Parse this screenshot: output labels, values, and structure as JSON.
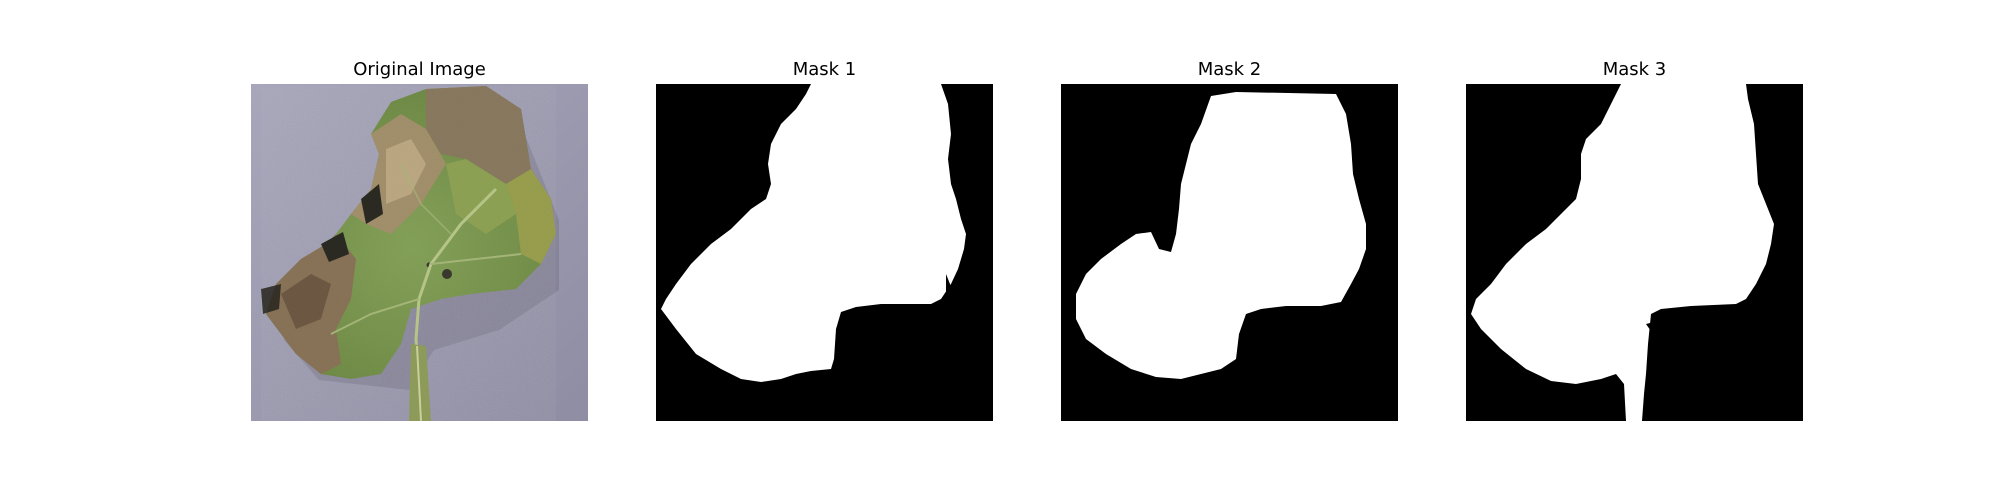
{
  "figure": {
    "panels": [
      {
        "title": "Original Image",
        "kind": "photo",
        "subject": "leaf"
      },
      {
        "title": "Mask 1",
        "kind": "mask"
      },
      {
        "title": "Mask 2",
        "kind": "mask"
      },
      {
        "title": "Mask 3",
        "kind": "mask"
      }
    ]
  },
  "colors": {
    "background": "#ffffff",
    "mask_fg": "#ffffff",
    "mask_bg": "#000000",
    "surface": "#9a97ad",
    "leaf_green": "#7f9a52",
    "leaf_brown": "#8a7459",
    "stem": "#8c9a5a"
  }
}
